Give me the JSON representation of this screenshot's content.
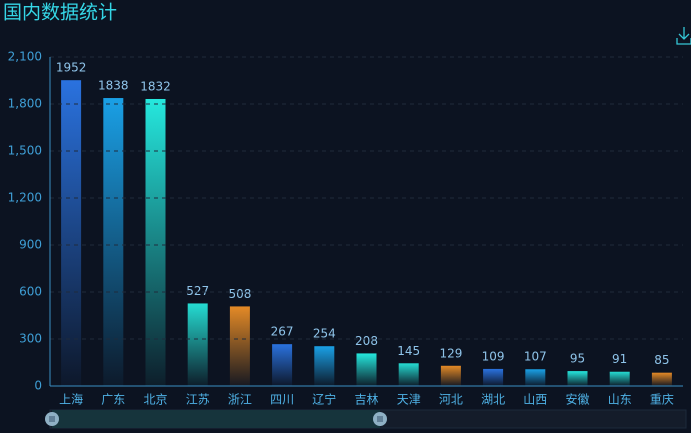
{
  "chart_data": {
    "type": "bar",
    "title": "国内数据统计",
    "categories": [
      "上海",
      "广东",
      "北京",
      "江苏",
      "浙江",
      "四川",
      "辽宁",
      "吉林",
      "天津",
      "河北",
      "湖北",
      "山西",
      "安徽",
      "山东",
      "重庆"
    ],
    "values": [
      1952,
      1838,
      1832,
      527,
      508,
      267,
      254,
      208,
      145,
      129,
      109,
      107,
      95,
      91,
      85
    ],
    "colors": [
      "#2a72df",
      "#1aa0e6",
      "#25e8de",
      "#25dcd2",
      "#e48a26",
      "#2a72df",
      "#1aa0e6",
      "#25e8de",
      "#25dcd2",
      "#e48a26",
      "#2a72df",
      "#1aa0e6",
      "#25e8de",
      "#25dcd2",
      "#e48a26"
    ],
    "ylim": [
      0,
      2100
    ],
    "yticks": [
      0,
      300,
      600,
      900,
      {
        "value": 1200,
        "label": "1,200"
      },
      {
        "value": 1500,
        "label": "1,500"
      },
      {
        "value": 1800,
        "label": "1,800"
      },
      {
        "value": 2100,
        "label": "2,100"
      }
    ],
    "grid": true
  }
}
